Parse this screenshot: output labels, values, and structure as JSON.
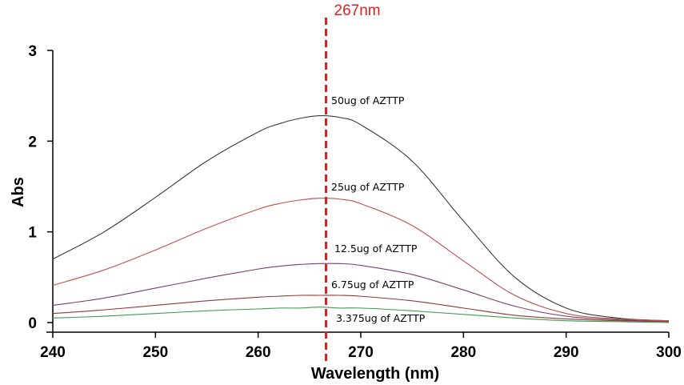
{
  "chart_data": {
    "type": "line",
    "title": "",
    "xlabel": "Wavelength (nm)",
    "ylabel": "Abs",
    "xlim": [
      240,
      300
    ],
    "ylim": [
      0,
      3
    ],
    "xticks": [
      240,
      250,
      260,
      270,
      280,
      290,
      300
    ],
    "yticks": [
      0,
      1,
      2,
      3
    ],
    "grid": false,
    "marker": {
      "x": 267,
      "label": "267nm",
      "color": "#e02020"
    },
    "series": [
      {
        "name": "50ug of AZTTP",
        "color": "#3a3a3a",
        "x": [
          240,
          245,
          250,
          255,
          260,
          262,
          264,
          266,
          268,
          270,
          275,
          280,
          285,
          290,
          295,
          300
        ],
        "y": [
          0.7,
          1.0,
          1.38,
          1.78,
          2.1,
          2.19,
          2.25,
          2.28,
          2.26,
          2.18,
          1.78,
          1.12,
          0.5,
          0.16,
          0.05,
          0.02
        ]
      },
      {
        "name": "25ug of AZTTP",
        "color": "#c0504d",
        "x": [
          240,
          245,
          250,
          255,
          260,
          262,
          264,
          266,
          268,
          270,
          275,
          280,
          285,
          290,
          295,
          300
        ],
        "y": [
          0.41,
          0.58,
          0.8,
          1.04,
          1.25,
          1.31,
          1.35,
          1.37,
          1.36,
          1.31,
          1.07,
          0.68,
          0.3,
          0.1,
          0.04,
          0.02
        ]
      },
      {
        "name": "12.5ug of  AZTTP",
        "color": "#7b3f6e",
        "x": [
          240,
          245,
          250,
          255,
          260,
          262,
          264,
          266,
          268,
          270,
          275,
          280,
          285,
          290,
          295,
          300
        ],
        "y": [
          0.19,
          0.27,
          0.38,
          0.49,
          0.59,
          0.62,
          0.64,
          0.65,
          0.65,
          0.63,
          0.53,
          0.36,
          0.18,
          0.07,
          0.03,
          0.01
        ]
      },
      {
        "name": "6.75ug of AZTTP",
        "color": "#8b3a3a",
        "x": [
          240,
          245,
          250,
          255,
          260,
          262,
          264,
          266,
          268,
          270,
          275,
          280,
          285,
          290,
          295,
          300
        ],
        "y": [
          0.1,
          0.14,
          0.19,
          0.24,
          0.28,
          0.29,
          0.3,
          0.3,
          0.3,
          0.29,
          0.24,
          0.16,
          0.08,
          0.04,
          0.02,
          0.01
        ]
      },
      {
        "name": "3.375ug of AZTTP",
        "color": "#3f9a4f",
        "x": [
          240,
          245,
          250,
          255,
          260,
          262,
          264,
          266,
          268,
          270,
          275,
          280,
          285,
          290,
          295,
          300
        ],
        "y": [
          0.05,
          0.07,
          0.1,
          0.13,
          0.15,
          0.16,
          0.16,
          0.17,
          0.16,
          0.16,
          0.13,
          0.09,
          0.05,
          0.02,
          0.01,
          0.0
        ]
      }
    ]
  }
}
